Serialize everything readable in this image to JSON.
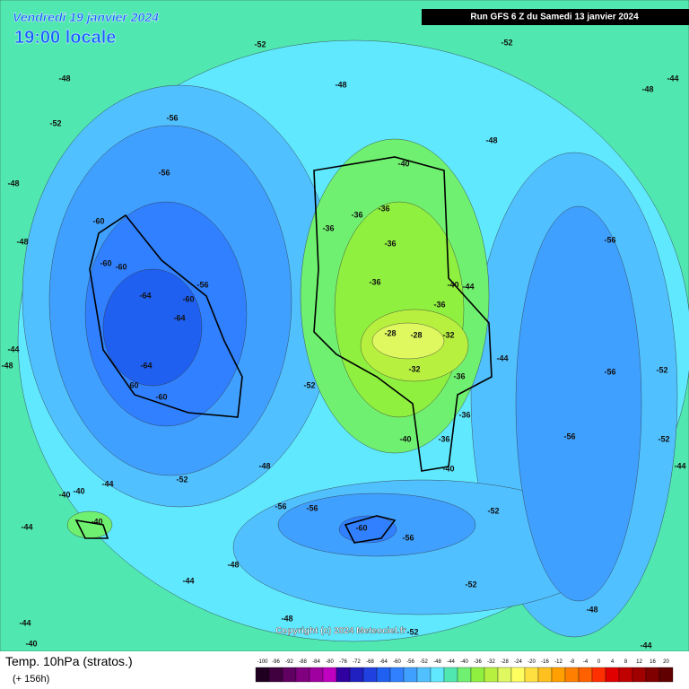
{
  "header": {
    "date": "Vendredi 19 janvier 2024",
    "time": "19:00 locale",
    "run": "Run GFS 6 Z du Samedi 13 janvier 2024"
  },
  "footer": {
    "title": "Temp. 10hPa (stratos.)",
    "lead": "(+ 156h)",
    "copyright": "Copyright (c) 2024 Meteociel.fr"
  },
  "legend": {
    "labels": [
      -100,
      -96,
      -92,
      -88,
      -84,
      -80,
      -76,
      -72,
      -68,
      -64,
      -60,
      -56,
      -52,
      -48,
      -44,
      -40,
      -36,
      -32,
      -28,
      -24,
      -20,
      -16,
      -12,
      -8,
      -4,
      0,
      4,
      8,
      12,
      16,
      20
    ],
    "colors": [
      "#200020",
      "#400040",
      "#600060",
      "#800080",
      "#a000a0",
      "#c000c0",
      "#3000a0",
      "#2020c0",
      "#2040e0",
      "#2060f0",
      "#3080ff",
      "#40a0ff",
      "#50c0ff",
      "#60e8ff",
      "#50e8b0",
      "#70f070",
      "#90f040",
      "#b8f040",
      "#e0f860",
      "#ffff60",
      "#ffe040",
      "#ffc020",
      "#ffa000",
      "#ff8000",
      "#ff6000",
      "#ff3000",
      "#e00000",
      "#c00000",
      "#a00000",
      "#800000",
      "#600000"
    ]
  },
  "map": {
    "labels": [
      -52,
      -48,
      -48,
      -52,
      -56,
      -56,
      -48,
      -60,
      -60,
      -60,
      -64,
      -64,
      -60,
      -64,
      -60,
      -60,
      -56,
      -52,
      -48,
      -52,
      -56,
      -56,
      -60,
      -56,
      -52,
      -56,
      -56,
      -52,
      -52,
      -56,
      -52,
      -48,
      -44,
      -40,
      -36,
      -36,
      -36,
      -36,
      -36,
      -40,
      -44,
      -36,
      -28,
      -28,
      -32,
      -32,
      -36,
      -36,
      -36,
      -40,
      -40,
      -44,
      -48,
      -44,
      -40,
      -40,
      -40,
      -44,
      -44,
      -48,
      -48,
      -44,
      -52,
      -52,
      -48,
      -44,
      -40,
      -44,
      -48,
      -44,
      -48
    ]
  }
}
